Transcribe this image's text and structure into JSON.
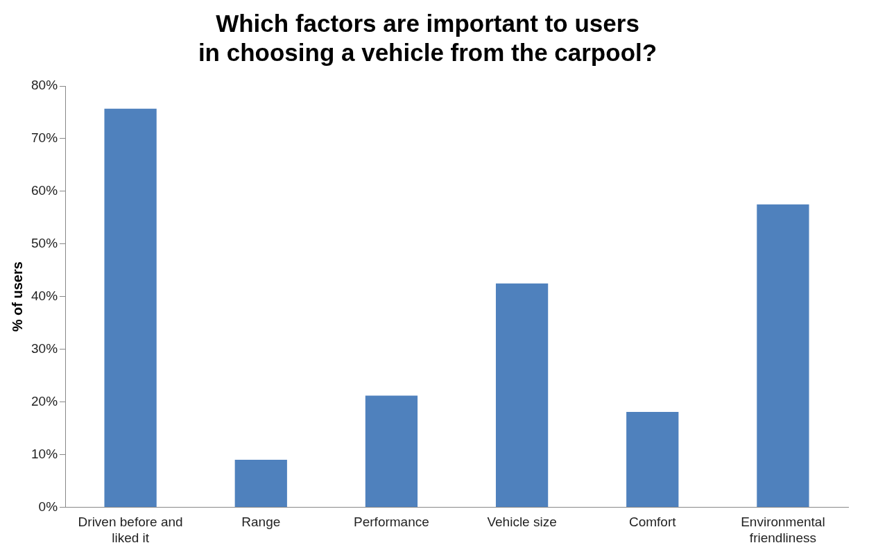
{
  "chart_data": {
    "type": "bar",
    "title": "Which factors are important to users in choosing a vehicle from the carpool?",
    "ylabel": "% of users",
    "categories": [
      "Driven before and liked it",
      "Range",
      "Performance",
      "Vehicle size",
      "Comfort",
      "Environmental friendliness"
    ],
    "values": [
      75.7,
      9.0,
      21.2,
      42.5,
      18.1,
      57.5
    ],
    "color": "#4f81bd",
    "ylim": [
      0,
      80
    ],
    "yticks": [
      {
        "value": 0,
        "label": "0%"
      },
      {
        "value": 10,
        "label": "10%"
      },
      {
        "value": 20,
        "label": "20%"
      },
      {
        "value": 30,
        "label": "30%"
      },
      {
        "value": 40,
        "label": "40%"
      },
      {
        "value": 50,
        "label": "50%"
      },
      {
        "value": 60,
        "label": "60%"
      },
      {
        "value": 70,
        "label": "70%"
      },
      {
        "value": 80,
        "label": "80%"
      }
    ],
    "grid": false,
    "legend": false
  }
}
